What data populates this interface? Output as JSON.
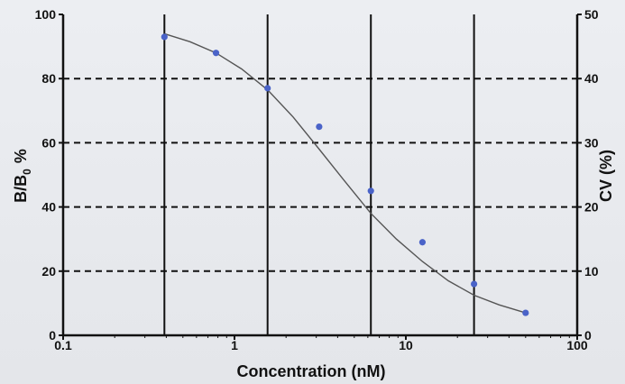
{
  "chart_data": {
    "type": "scatter",
    "title": "",
    "xlabel": "Concentration (nM)",
    "ylabel": {
      "main": "B/B",
      "sub": "0",
      "unit": "%"
    },
    "y2label": "CV (%)",
    "xscale": "log",
    "xlim": [
      0.1,
      100
    ],
    "ylim": [
      0,
      100
    ],
    "y2lim": [
      0,
      50
    ],
    "xticks": [
      0.1,
      1,
      10,
      100
    ],
    "xtick_labels": [
      "0.1",
      "1",
      "10",
      "100"
    ],
    "yticks": [
      0,
      20,
      40,
      60,
      80,
      100
    ],
    "ytick_labels": [
      "0",
      "20",
      "40",
      "60",
      "80",
      "100"
    ],
    "y2ticks": [
      0,
      10,
      20,
      30,
      40,
      50
    ],
    "y2tick_labels": [
      "0",
      "10",
      "20",
      "30",
      "40",
      "50"
    ],
    "vertical_gridlines_x": [
      0.39,
      1.56,
      6.25,
      25
    ],
    "horizontal_gridlines_y": [
      20,
      40,
      60,
      80
    ],
    "grid": true,
    "series": [
      {
        "kind": "points",
        "color": "#4a63c8",
        "x": [
          0.39,
          0.78,
          1.56,
          3.12,
          6.25,
          12.5,
          25,
          50
        ],
        "y": [
          93,
          88,
          77,
          65,
          45,
          29,
          16,
          7
        ]
      },
      {
        "kind": "fit",
        "color": "#555555",
        "x": [
          0.39,
          0.55,
          0.78,
          1.1,
          1.56,
          2.2,
          3.12,
          4.4,
          6.25,
          8.8,
          12.5,
          17.7,
          25,
          35,
          50
        ],
        "y": [
          94,
          91.5,
          88,
          83,
          76.5,
          68,
          58,
          48,
          38,
          30,
          23,
          17,
          12.5,
          9.5,
          7
        ]
      }
    ]
  }
}
